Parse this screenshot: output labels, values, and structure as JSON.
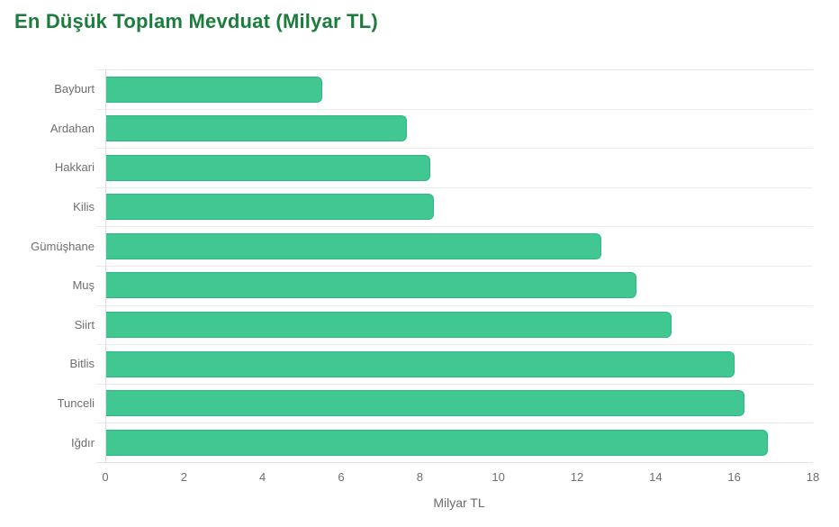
{
  "page": {
    "title": "En Düşük Toplam Mevduat (Milyar TL)"
  },
  "colors": {
    "title_green": "#1b7c3d",
    "bar_fill": "#41c792",
    "bar_border": "#2fb883",
    "grid_line": "#ebebeb",
    "axis_line": "#dedede",
    "label_gray": "#6e6e6e"
  },
  "chart_data": {
    "type": "bar",
    "orientation": "horizontal",
    "title": "En Düşük Toplam Mevduat (Milyar TL)",
    "categories": [
      "Bayburt",
      "Ardahan",
      "Hakkari",
      "Kilis",
      "Gümüşhane",
      "Muş",
      "Siirt",
      "Bitlis",
      "Tunceli",
      "Iğdır"
    ],
    "values": [
      5.5,
      7.65,
      8.25,
      8.35,
      12.6,
      13.5,
      14.4,
      16.0,
      16.25,
      16.85
    ],
    "xlabel": "Milyar TL",
    "ylabel": "",
    "xlim": [
      0,
      18
    ],
    "xticks": [
      0,
      2,
      4,
      6,
      8,
      10,
      12,
      14,
      16,
      18
    ],
    "grid": "category-separator-lines",
    "legend": "none"
  }
}
